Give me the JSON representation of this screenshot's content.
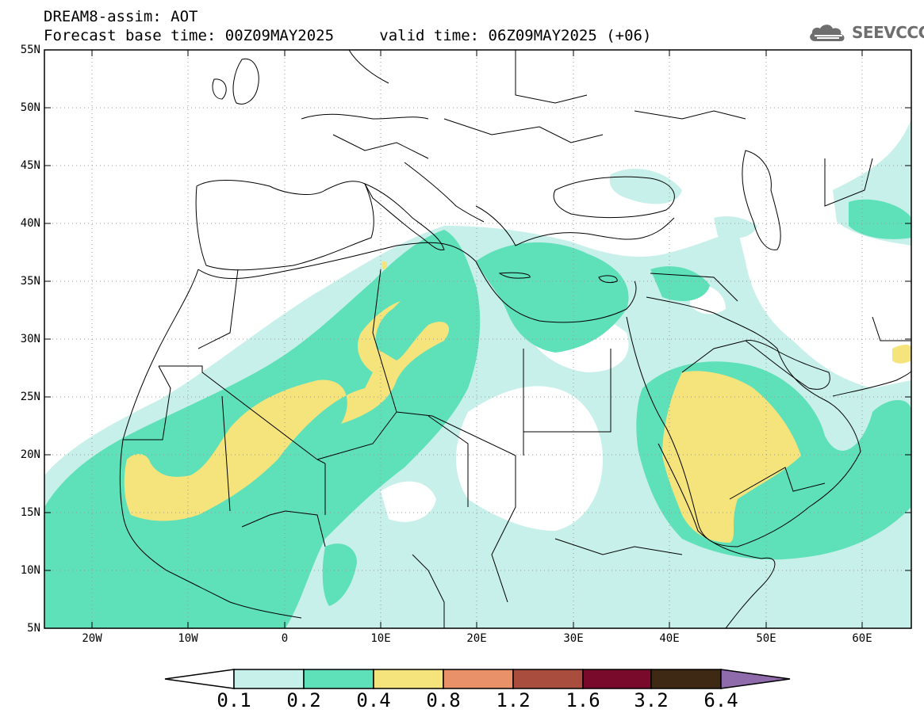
{
  "title": {
    "line1": "DREAM8-assim: AOT",
    "base_label": "Forecast base time: 00Z09MAY2025",
    "valid_label": "valid time: 06Z09MAY2025 (+06)"
  },
  "logo": {
    "icon": "cloud-icon",
    "text": "SEEVCCC"
  },
  "axes": {
    "lat_labels": [
      "55N",
      "50N",
      "45N",
      "40N",
      "35N",
      "30N",
      "25N",
      "20N",
      "15N",
      "10N",
      "5N"
    ],
    "lon_labels": [
      "20W",
      "10W",
      "0",
      "10E",
      "20E",
      "30E",
      "40E",
      "50E",
      "60E"
    ]
  },
  "colorbar": {
    "levels": [
      "0.1",
      "0.2",
      "0.4",
      "0.8",
      "1.2",
      "1.6",
      "3.2",
      "6.4"
    ],
    "colors": [
      "#ffffff",
      "#c8f0ea",
      "#5ee0b8",
      "#f5e47c",
      "#e9926a",
      "#a94e3f",
      "#7a0a2c",
      "#3e2915",
      "#8f6bab"
    ]
  }
}
